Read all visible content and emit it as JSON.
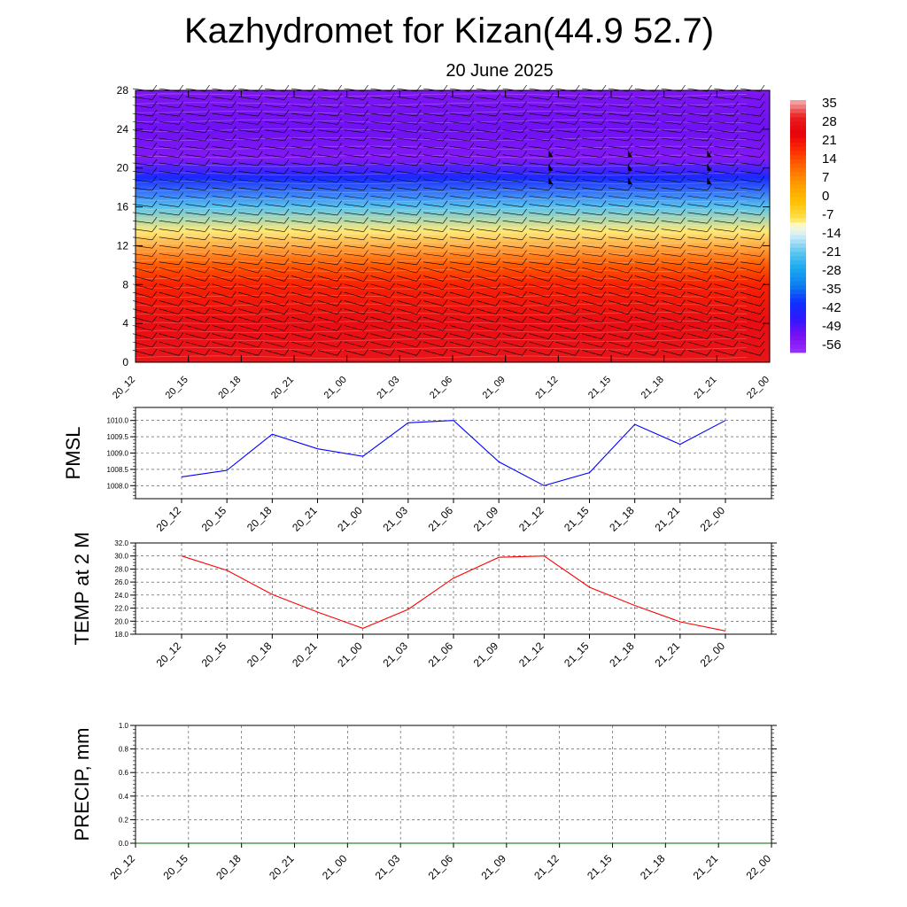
{
  "title": "Kazhydromet for Kizan(44.9 52.7)",
  "subtitle": "20 June 2025",
  "chart_data": [
    {
      "type": "heatmap",
      "name": "temperature cross-section with wind barbs",
      "x_tick_labels": [
        "20_12",
        "20_15",
        "20_18",
        "20_21",
        "21_00",
        "21_03",
        "21_06",
        "21_09",
        "21_12",
        "21_15",
        "21_18",
        "21_21",
        "22_00"
      ],
      "y_tick_labels": [
        "0",
        "4",
        "8",
        "12",
        "16",
        "20",
        "24",
        "28"
      ],
      "ylim": [
        0,
        28
      ],
      "colorbar_labels": [
        "35",
        "28",
        "21",
        "14",
        "7",
        "0",
        "-7",
        "-14",
        "-21",
        "-28",
        "-35",
        "-42",
        "-49",
        "-56"
      ],
      "colorbar_range": [
        -63,
        42
      ],
      "level_temperatures": [
        {
          "level": 0,
          "temp": 33
        },
        {
          "level": 4,
          "temp": 31
        },
        {
          "level": 8,
          "temp": 23
        },
        {
          "level": 10,
          "temp": 16
        },
        {
          "level": 13.5,
          "temp": -8
        },
        {
          "level": 16,
          "temp": -22
        },
        {
          "level": 19,
          "temp": -44
        },
        {
          "level": 21,
          "temp": -58
        },
        {
          "level": 24,
          "temp": -55
        },
        {
          "level": 28,
          "temp": -57
        }
      ],
      "colors": {
        "hot": "#e8000b",
        "cold": "#1e1eff",
        "top": "#8a2be2"
      }
    },
    {
      "type": "line",
      "ylabel": "PMSL",
      "x": [
        "20_12",
        "20_15",
        "20_18",
        "20_21",
        "21_00",
        "21_03",
        "21_06",
        "21_09",
        "21_12",
        "21_15",
        "21_18",
        "21_21",
        "22_00"
      ],
      "values": [
        1008.27,
        1008.47,
        1009.58,
        1009.13,
        1008.9,
        1009.93,
        1010.0,
        1008.73,
        1008.0,
        1008.4,
        1009.88,
        1009.27,
        1010.0
      ],
      "y_tick_labels": [
        "1008.0",
        "1008.5",
        "1009.0",
        "1009.5",
        "1010.0"
      ],
      "ylim": [
        1007.6,
        1010.4
      ],
      "color": "#0000ff",
      "grid": true
    },
    {
      "type": "line",
      "ylabel": "TEMP at 2 M",
      "x": [
        "20_12",
        "20_15",
        "20_18",
        "20_21",
        "21_00",
        "21_03",
        "21_06",
        "21_09",
        "21_12",
        "21_15",
        "21_18",
        "21_21",
        "22_00"
      ],
      "values": [
        30.0,
        27.8,
        24.1,
        21.4,
        18.9,
        21.8,
        26.6,
        29.8,
        30.0,
        25.2,
        22.4,
        19.9,
        18.5
      ],
      "y_tick_labels": [
        "18.0",
        "20.0",
        "22.0",
        "24.0",
        "26.0",
        "28.0",
        "30.0",
        "32.0"
      ],
      "ylim": [
        18.0,
        32.0
      ],
      "color": "#ff0000",
      "grid": true
    },
    {
      "type": "line",
      "ylabel": "PRECIP, mm",
      "x": [
        "20_12",
        "20_15",
        "20_18",
        "20_21",
        "21_00",
        "21_03",
        "21_06",
        "21_09",
        "21_12",
        "21_15",
        "21_18",
        "21_21",
        "22_00"
      ],
      "values": [
        0,
        0,
        0,
        0,
        0,
        0,
        0,
        0,
        0,
        0,
        0,
        0,
        0
      ],
      "y_tick_labels": [
        "0.0",
        "0.2",
        "0.4",
        "0.6",
        "0.8",
        "1.0"
      ],
      "ylim": [
        0,
        1.0
      ],
      "color": "#006400",
      "grid": true
    }
  ]
}
